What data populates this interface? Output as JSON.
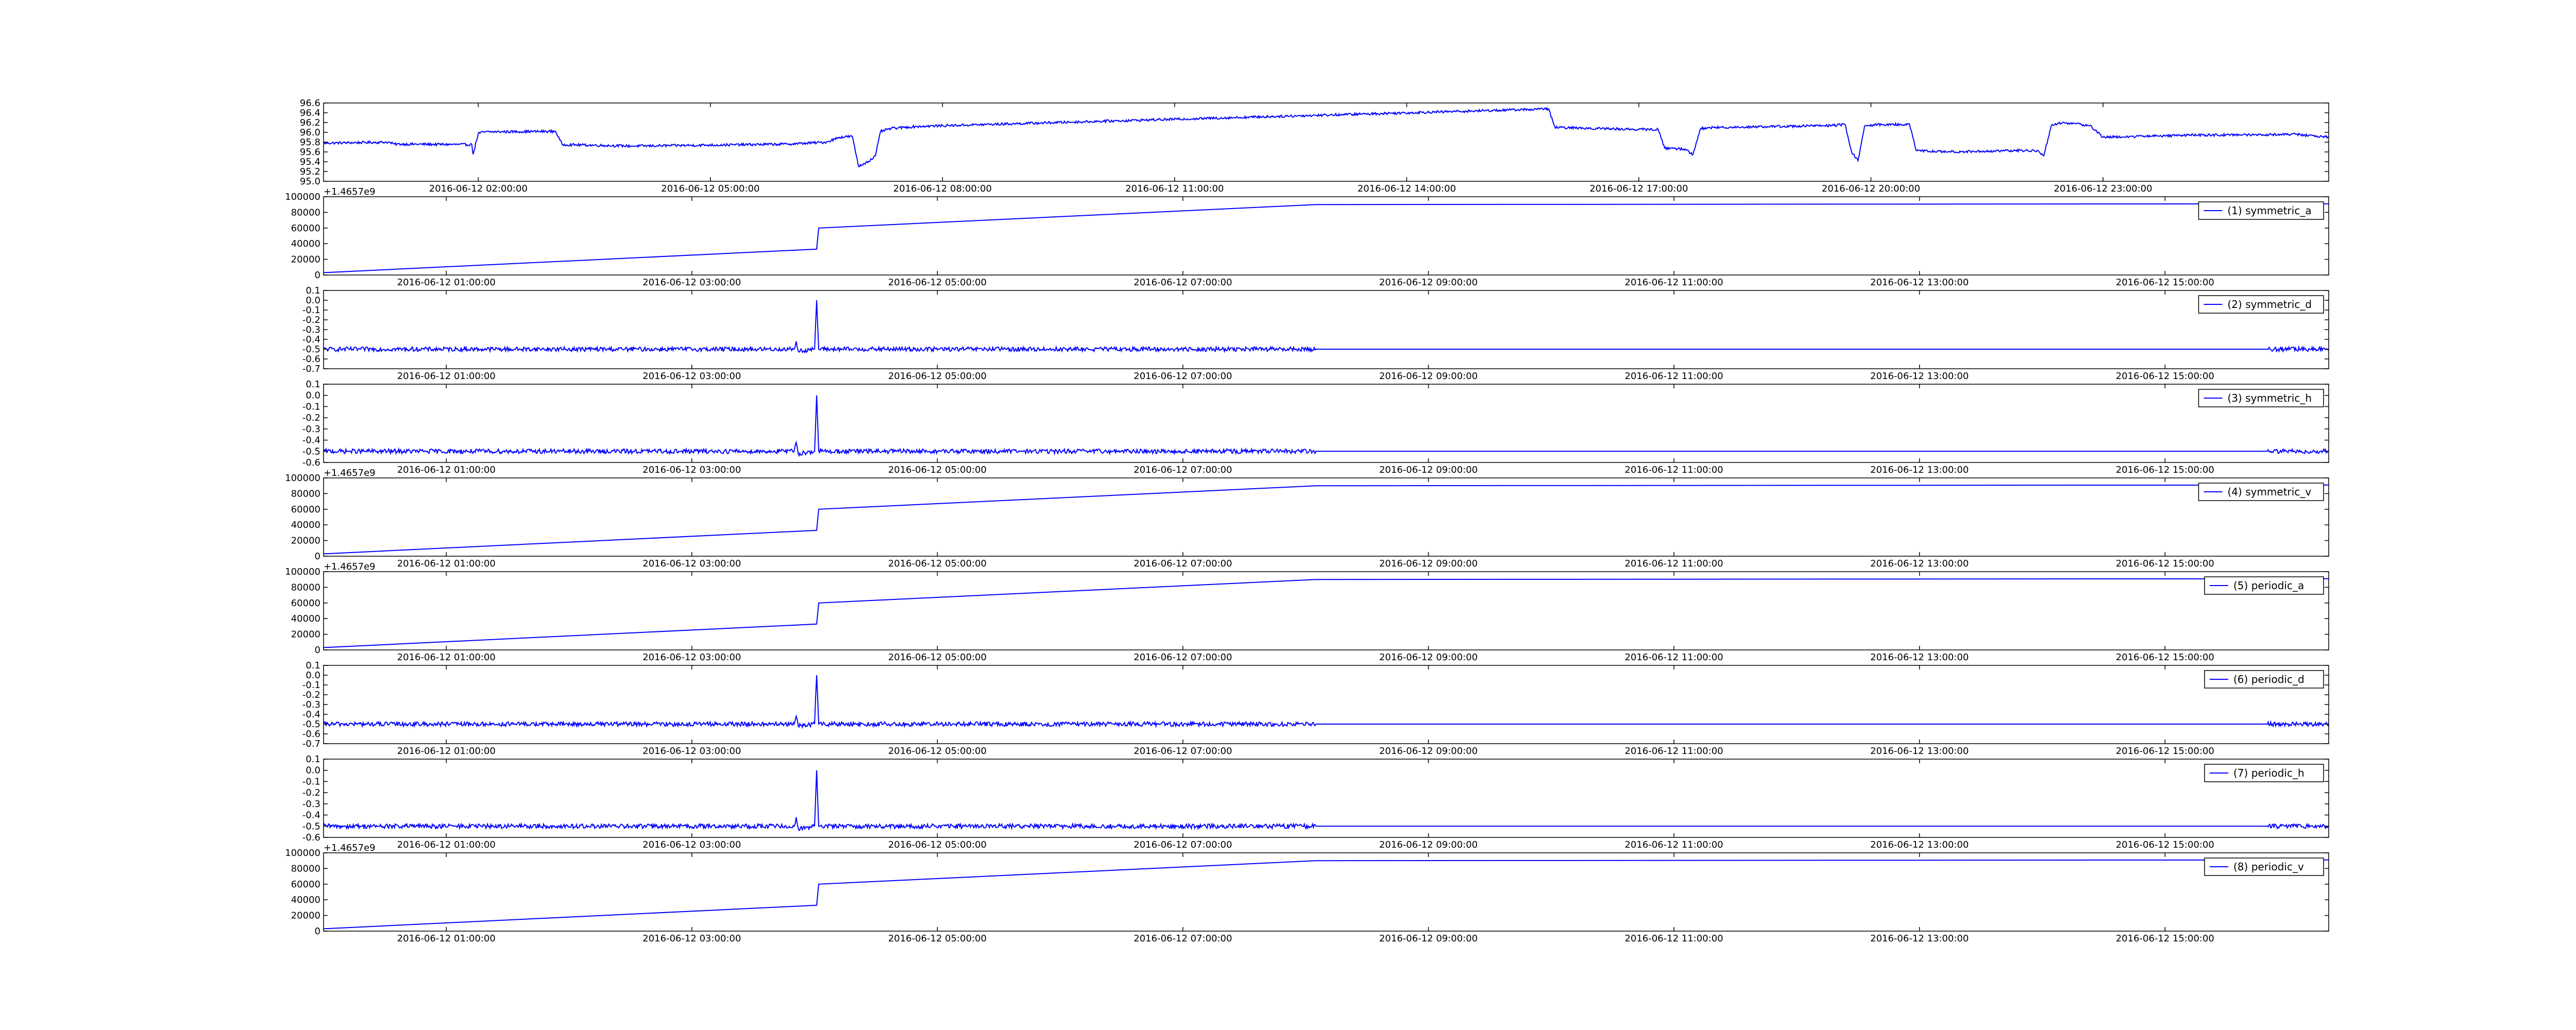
{
  "figure": {
    "line_color": "#0000ff",
    "legend_line_color": "#0000ff"
  },
  "chart_data": [
    {
      "type": "line",
      "title": "",
      "xlabel": "",
      "ylabel": "",
      "ylim": [
        95.0,
        96.6
      ],
      "yticks": [
        "95.0",
        "95.2",
        "95.4",
        "95.6",
        "95.8",
        "96.0",
        "96.2",
        "96.4",
        "96.6"
      ],
      "xlim": [
        "2016-06-12 00:00",
        "2016-06-13 01:55"
      ],
      "xticks": [
        "2016-06-12 02:00",
        "2016-06-12 05:00",
        "2016-06-12 08:00",
        "2016-06-12 11:00",
        "2016-06-12 14:00",
        "2016-06-12 17:00",
        "2016-06-12 20:00",
        "2016-06-12 23:00"
      ],
      "offset_label": "",
      "legend": null,
      "noise": 0.025,
      "series": [
        {
          "x": [
            "2016-06-12 00:00",
            "2016-06-12 00:50",
            "2016-06-12 00:55",
            "2016-06-12 01:55",
            "2016-06-12 01:56",
            "2016-06-12 02:00",
            "2016-06-12 02:05",
            "2016-06-12 03:00",
            "2016-06-12 03:05",
            "2016-06-12 04:00",
            "2016-06-12 05:00",
            "2016-06-12 06:00",
            "2016-06-12 06:30",
            "2016-06-12 06:40",
            "2016-06-12 06:50",
            "2016-06-12 06:55",
            "2016-06-12 07:05",
            "2016-06-12 07:08",
            "2016-06-12 07:12",
            "2016-06-12 07:20",
            "2016-06-12 07:30",
            "2016-06-12 07:40",
            "2016-06-12 08:05",
            "2016-06-12 15:50",
            "2016-06-12 15:55",
            "2016-06-12 17:00",
            "2016-06-12 17:15",
            "2016-06-12 17:20",
            "2016-06-12 17:35",
            "2016-06-12 17:42",
            "2016-06-12 17:48",
            "2016-06-12 18:00",
            "2016-06-12 19:30",
            "2016-06-12 19:40",
            "2016-06-12 19:45",
            "2016-06-12 19:50",
            "2016-06-12 19:55",
            "2016-06-12 20:05",
            "2016-06-12 20:30",
            "2016-06-12 20:35",
            "2016-06-12 21:00",
            "2016-06-12 22:00",
            "2016-06-12 22:10",
            "2016-06-12 22:14",
            "2016-06-12 22:20",
            "2016-06-12 22:30",
            "2016-06-12 22:50",
            "2016-06-12 23:00",
            "2016-06-13 00:00",
            "2016-06-13 01:30",
            "2016-06-13 01:55"
          ],
          "y": [
            95.78,
            95.8,
            95.76,
            95.75,
            95.55,
            95.98,
            96.01,
            96.02,
            95.75,
            95.72,
            95.74,
            95.76,
            95.8,
            95.9,
            95.92,
            95.3,
            95.45,
            95.52,
            96.02,
            96.08,
            96.1,
            96.12,
            96.14,
            96.48,
            96.1,
            96.06,
            96.06,
            95.68,
            95.66,
            95.55,
            96.08,
            96.1,
            96.14,
            96.16,
            95.6,
            95.42,
            96.12,
            96.16,
            96.16,
            95.63,
            95.6,
            95.63,
            95.62,
            95.52,
            96.15,
            96.2,
            96.14,
            95.9,
            95.94,
            95.96,
            95.9
          ]
        }
      ]
    },
    {
      "type": "line",
      "title": "",
      "xlabel": "",
      "ylabel": "",
      "ylim": [
        0,
        100000
      ],
      "yticks": [
        "0",
        "20000",
        "40000",
        "60000",
        "80000",
        "100000"
      ],
      "xlim": [
        "2016-06-12 00:00",
        "2016-06-12 16:20"
      ],
      "xticks": [
        "2016-06-12 01:00",
        "2016-06-12 03:00",
        "2016-06-12 05:00",
        "2016-06-12 07:00",
        "2016-06-12 09:00",
        "2016-06-12 11:00",
        "2016-06-12 13:00",
        "2016-06-12 15:00"
      ],
      "offset_label": "+1.4657e9",
      "legend": "(1) symmetric_a",
      "noise": 0,
      "series": [
        {
          "name": "(1) symmetric_a",
          "x": [
            "2016-06-12 00:00",
            "2016-06-12 04:01",
            "2016-06-12 04:02",
            "2016-06-12 08:05",
            "2016-06-12 16:20"
          ],
          "y": [
            3000,
            33000,
            60000,
            90000,
            91000
          ]
        }
      ]
    },
    {
      "type": "line",
      "title": "",
      "xlabel": "",
      "ylabel": "",
      "ylim": [
        -0.7,
        0.1
      ],
      "yticks": [
        "-0.7",
        "-0.6",
        "-0.5",
        "-0.4",
        "-0.3",
        "-0.2",
        "-0.1",
        "0.0",
        "0.1"
      ],
      "xlim": [
        "2016-06-12 00:00",
        "2016-06-12 16:20"
      ],
      "xticks": [
        "2016-06-12 01:00",
        "2016-06-12 03:00",
        "2016-06-12 05:00",
        "2016-06-12 07:00",
        "2016-06-12 09:00",
        "2016-06-12 11:00",
        "2016-06-12 13:00",
        "2016-06-12 15:00"
      ],
      "offset_label": "",
      "legend": "(2) symmetric_d",
      "noise": 0.022,
      "series": [
        {
          "name": "(2) symmetric_d",
          "x": [
            "2016-06-12 00:00",
            "2016-06-12 03:50",
            "2016-06-12 03:51",
            "2016-06-12 03:52",
            "2016-06-12 04:00",
            "2016-06-12 04:01",
            "2016-06-12 04:02",
            "2016-06-12 08:05",
            "2016-06-12 15:50",
            "2016-06-12 16:20"
          ],
          "y": [
            -0.5,
            -0.5,
            -0.42,
            -0.52,
            -0.5,
            0.0,
            -0.5,
            -0.5,
            -0.5,
            -0.5
          ],
          "gaps": [
            [
              "2016-06-12 08:06",
              "2016-06-12 15:49"
            ]
          ]
        }
      ]
    },
    {
      "type": "line",
      "title": "",
      "xlabel": "",
      "ylabel": "",
      "ylim": [
        -0.6,
        0.1
      ],
      "yticks": [
        "-0.6",
        "-0.5",
        "-0.4",
        "-0.3",
        "-0.2",
        "-0.1",
        "0.0",
        "0.1"
      ],
      "xlim": [
        "2016-06-12 00:00",
        "2016-06-12 16:20"
      ],
      "xticks": [
        "2016-06-12 01:00",
        "2016-06-12 03:00",
        "2016-06-12 05:00",
        "2016-06-12 07:00",
        "2016-06-12 09:00",
        "2016-06-12 11:00",
        "2016-06-12 13:00",
        "2016-06-12 15:00"
      ],
      "offset_label": "",
      "legend": "(3) symmetric_h",
      "noise": 0.02,
      "series": [
        {
          "name": "(3) symmetric_h",
          "x": [
            "2016-06-12 00:00",
            "2016-06-12 03:50",
            "2016-06-12 03:51",
            "2016-06-12 03:52",
            "2016-06-12 04:00",
            "2016-06-12 04:01",
            "2016-06-12 04:02",
            "2016-06-12 08:05",
            "2016-06-12 15:50",
            "2016-06-12 16:20"
          ],
          "y": [
            -0.5,
            -0.5,
            -0.42,
            -0.52,
            -0.5,
            0.0,
            -0.5,
            -0.5,
            -0.5,
            -0.5
          ],
          "gaps": [
            [
              "2016-06-12 08:06",
              "2016-06-12 15:49"
            ]
          ]
        }
      ]
    },
    {
      "type": "line",
      "title": "",
      "xlabel": "",
      "ylabel": "",
      "ylim": [
        0,
        100000
      ],
      "yticks": [
        "0",
        "20000",
        "40000",
        "60000",
        "80000",
        "100000"
      ],
      "xlim": [
        "2016-06-12 00:00",
        "2016-06-12 16:20"
      ],
      "xticks": [
        "2016-06-12 01:00",
        "2016-06-12 03:00",
        "2016-06-12 05:00",
        "2016-06-12 07:00",
        "2016-06-12 09:00",
        "2016-06-12 11:00",
        "2016-06-12 13:00",
        "2016-06-12 15:00"
      ],
      "offset_label": "+1.4657e9",
      "legend": "(4) symmetric_v",
      "noise": 0,
      "series": [
        {
          "name": "(4) symmetric_v",
          "x": [
            "2016-06-12 00:00",
            "2016-06-12 04:01",
            "2016-06-12 04:02",
            "2016-06-12 08:05",
            "2016-06-12 16:20"
          ],
          "y": [
            3000,
            33000,
            60000,
            90000,
            91000
          ]
        }
      ]
    },
    {
      "type": "line",
      "title": "",
      "xlabel": "",
      "ylabel": "",
      "ylim": [
        0,
        100000
      ],
      "yticks": [
        "0",
        "20000",
        "40000",
        "60000",
        "80000",
        "100000"
      ],
      "xlim": [
        "2016-06-12 00:00",
        "2016-06-12 16:20"
      ],
      "xticks": [
        "2016-06-12 01:00",
        "2016-06-12 03:00",
        "2016-06-12 05:00",
        "2016-06-12 07:00",
        "2016-06-12 09:00",
        "2016-06-12 11:00",
        "2016-06-12 13:00",
        "2016-06-12 15:00"
      ],
      "offset_label": "+1.4657e9",
      "legend": "(5) periodic_a",
      "noise": 0,
      "series": [
        {
          "name": "(5) periodic_a",
          "x": [
            "2016-06-12 00:00",
            "2016-06-12 04:01",
            "2016-06-12 04:02",
            "2016-06-12 08:05",
            "2016-06-12 16:20"
          ],
          "y": [
            3000,
            33000,
            60000,
            90000,
            91000
          ]
        }
      ]
    },
    {
      "type": "line",
      "title": "",
      "xlabel": "",
      "ylabel": "",
      "ylim": [
        -0.7,
        0.1
      ],
      "yticks": [
        "-0.7",
        "-0.6",
        "-0.5",
        "-0.4",
        "-0.3",
        "-0.2",
        "-0.1",
        "0.0",
        "0.1"
      ],
      "xlim": [
        "2016-06-12 00:00",
        "2016-06-12 16:20"
      ],
      "xticks": [
        "2016-06-12 01:00",
        "2016-06-12 03:00",
        "2016-06-12 05:00",
        "2016-06-12 07:00",
        "2016-06-12 09:00",
        "2016-06-12 11:00",
        "2016-06-12 13:00",
        "2016-06-12 15:00"
      ],
      "offset_label": "",
      "legend": "(6) periodic_d",
      "noise": 0.022,
      "series": [
        {
          "name": "(6) periodic_d",
          "x": [
            "2016-06-12 00:00",
            "2016-06-12 03:50",
            "2016-06-12 03:51",
            "2016-06-12 03:52",
            "2016-06-12 04:00",
            "2016-06-12 04:01",
            "2016-06-12 04:02",
            "2016-06-12 08:05",
            "2016-06-12 15:50",
            "2016-06-12 16:20"
          ],
          "y": [
            -0.5,
            -0.5,
            -0.42,
            -0.52,
            -0.5,
            0.0,
            -0.5,
            -0.5,
            -0.5,
            -0.5
          ],
          "gaps": [
            [
              "2016-06-12 08:06",
              "2016-06-12 15:49"
            ]
          ]
        }
      ]
    },
    {
      "type": "line",
      "title": "",
      "xlabel": "",
      "ylabel": "",
      "ylim": [
        -0.6,
        0.1
      ],
      "yticks": [
        "-0.6",
        "-0.5",
        "-0.4",
        "-0.3",
        "-0.2",
        "-0.1",
        "0.0",
        "0.1"
      ],
      "xlim": [
        "2016-06-12 00:00",
        "2016-06-12 16:20"
      ],
      "xticks": [
        "2016-06-12 01:00",
        "2016-06-12 03:00",
        "2016-06-12 05:00",
        "2016-06-12 07:00",
        "2016-06-12 09:00",
        "2016-06-12 11:00",
        "2016-06-12 13:00",
        "2016-06-12 15:00"
      ],
      "offset_label": "",
      "legend": "(7) periodic_h",
      "noise": 0.02,
      "series": [
        {
          "name": "(7) periodic_h",
          "x": [
            "2016-06-12 00:00",
            "2016-06-12 03:50",
            "2016-06-12 03:51",
            "2016-06-12 03:52",
            "2016-06-12 04:00",
            "2016-06-12 04:01",
            "2016-06-12 04:02",
            "2016-06-12 08:05",
            "2016-06-12 15:50",
            "2016-06-12 16:20"
          ],
          "y": [
            -0.5,
            -0.5,
            -0.42,
            -0.52,
            -0.5,
            0.0,
            -0.5,
            -0.5,
            -0.5,
            -0.5
          ],
          "gaps": [
            [
              "2016-06-12 08:06",
              "2016-06-12 15:49"
            ]
          ]
        }
      ]
    },
    {
      "type": "line",
      "title": "",
      "xlabel": "",
      "ylabel": "",
      "ylim": [
        0,
        100000
      ],
      "yticks": [
        "0",
        "20000",
        "40000",
        "60000",
        "80000",
        "100000"
      ],
      "xlim": [
        "2016-06-12 00:00",
        "2016-06-12 16:20"
      ],
      "xticks": [
        "2016-06-12 01:00",
        "2016-06-12 03:00",
        "2016-06-12 05:00",
        "2016-06-12 07:00",
        "2016-06-12 09:00",
        "2016-06-12 11:00",
        "2016-06-12 13:00",
        "2016-06-12 15:00"
      ],
      "offset_label": "+1.4657e9",
      "legend": "(8) periodic_v",
      "noise": 0,
      "series": [
        {
          "name": "(8) periodic_v",
          "x": [
            "2016-06-12 00:00",
            "2016-06-12 04:01",
            "2016-06-12 04:02",
            "2016-06-12 08:05",
            "2016-06-12 16:20"
          ],
          "y": [
            3000,
            33000,
            60000,
            90000,
            91000
          ]
        }
      ]
    }
  ]
}
